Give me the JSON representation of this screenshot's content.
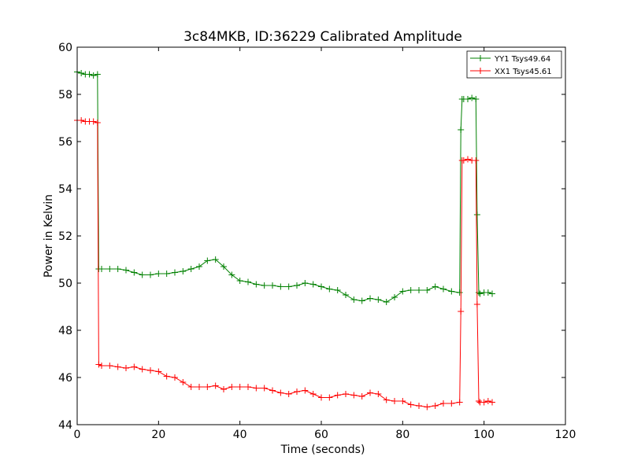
{
  "chart_data": {
    "type": "line",
    "title": "3c84MKB, ID:36229 Calibrated Amplitude",
    "xlabel": "Time (seconds)",
    "ylabel": "Power in Kelvin",
    "xlim": [
      0,
      120
    ],
    "ylim": [
      44,
      60
    ],
    "xticks": [
      0,
      20,
      40,
      60,
      80,
      100,
      120
    ],
    "yticks": [
      44,
      46,
      48,
      50,
      52,
      54,
      56,
      58,
      60
    ],
    "xtick_labels": [
      "0",
      "20",
      "40",
      "60",
      "80",
      "100",
      "120"
    ],
    "ytick_labels": [
      "44",
      "46",
      "48",
      "50",
      "52",
      "54",
      "56",
      "58",
      "60"
    ],
    "grid": false,
    "legend_position": "top-right",
    "marker": "plus",
    "series": [
      {
        "name": "YY1 Tsys49.64",
        "color": "#008000",
        "x": [
          0,
          1,
          2,
          3,
          4,
          5,
          5.3,
          6,
          8,
          10,
          12,
          14,
          16,
          18,
          20,
          22,
          24,
          26,
          28,
          30,
          32,
          34,
          36,
          38,
          40,
          42,
          44,
          46,
          48,
          50,
          52,
          54,
          56,
          58,
          60,
          62,
          64,
          66,
          68,
          70,
          72,
          74,
          76,
          78,
          80,
          82,
          84,
          86,
          88,
          90,
          92,
          94,
          94.3,
          94.6,
          95,
          96,
          97,
          98,
          98.3,
          98.7,
          99,
          100,
          101,
          102
        ],
        "y": [
          58.95,
          58.9,
          58.85,
          58.85,
          58.8,
          58.85,
          50.6,
          50.6,
          50.6,
          50.6,
          50.55,
          50.45,
          50.35,
          50.35,
          50.4,
          50.4,
          50.45,
          50.5,
          50.6,
          50.7,
          50.95,
          51.0,
          50.7,
          50.35,
          50.1,
          50.05,
          49.95,
          49.9,
          49.9,
          49.85,
          49.85,
          49.9,
          50.0,
          49.95,
          49.85,
          49.75,
          49.7,
          49.5,
          49.3,
          49.25,
          49.35,
          49.3,
          49.2,
          49.4,
          49.65,
          49.7,
          49.7,
          49.7,
          49.85,
          49.75,
          49.65,
          49.6,
          56.5,
          57.8,
          57.8,
          57.8,
          57.85,
          57.8,
          52.9,
          49.6,
          49.55,
          49.6,
          49.6,
          49.55
        ]
      },
      {
        "name": "XX1 Tsys45.61",
        "color": "#ff0000",
        "x": [
          0,
          1,
          2,
          3,
          4,
          5,
          5.3,
          6,
          8,
          10,
          12,
          14,
          16,
          18,
          20,
          22,
          24,
          26,
          28,
          30,
          32,
          34,
          36,
          38,
          40,
          42,
          44,
          46,
          48,
          50,
          52,
          54,
          56,
          58,
          60,
          62,
          64,
          66,
          68,
          70,
          72,
          74,
          76,
          78,
          80,
          82,
          84,
          86,
          88,
          90,
          92,
          94,
          94.3,
          94.6,
          95,
          96,
          97,
          98,
          98.3,
          98.7,
          99,
          100,
          101,
          102
        ],
        "y": [
          56.9,
          56.9,
          56.85,
          56.85,
          56.85,
          56.8,
          46.55,
          46.5,
          46.5,
          46.45,
          46.4,
          46.45,
          46.35,
          46.3,
          46.25,
          46.05,
          46.0,
          45.8,
          45.6,
          45.6,
          45.6,
          45.65,
          45.5,
          45.6,
          45.6,
          45.6,
          45.55,
          45.55,
          45.45,
          45.35,
          45.3,
          45.4,
          45.45,
          45.3,
          45.15,
          45.15,
          45.25,
          45.3,
          45.25,
          45.2,
          45.35,
          45.3,
          45.05,
          45.0,
          45.0,
          44.85,
          44.8,
          44.75,
          44.8,
          44.9,
          44.9,
          44.95,
          48.8,
          55.2,
          55.2,
          55.25,
          55.2,
          55.2,
          49.1,
          45.0,
          44.95,
          44.95,
          45.0,
          44.95
        ]
      }
    ]
  }
}
